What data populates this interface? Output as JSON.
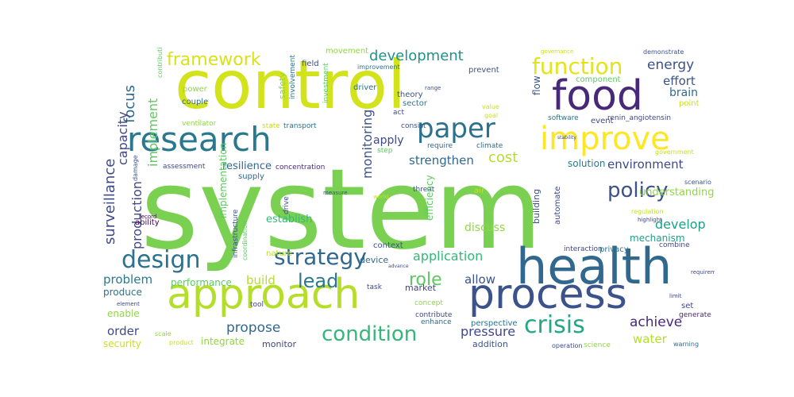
{
  "words": [
    {
      "text": "system",
      "color": "#7ad151",
      "vertical": false
    },
    {
      "text": "control",
      "color": "#d2e21b",
      "vertical": false
    },
    {
      "text": "health",
      "color": "#31688e",
      "vertical": false
    },
    {
      "text": "approach",
      "color": "#b5de2b",
      "vertical": false
    },
    {
      "text": "process",
      "color": "#3b528b",
      "vertical": false
    },
    {
      "text": "research",
      "color": "#2a788e",
      "vertical": false
    },
    {
      "text": "food",
      "color": "#482878",
      "vertical": false
    },
    {
      "text": "improve",
      "color": "#fde725",
      "vertical": false
    },
    {
      "text": "paper",
      "color": "#2c728e",
      "vertical": false
    },
    {
      "text": "function",
      "color": "#e2e418",
      "vertical": false
    },
    {
      "text": "strategy",
      "color": "#31688e",
      "vertical": false
    },
    {
      "text": "design",
      "color": "#2c728e",
      "vertical": false
    },
    {
      "text": "condition",
      "color": "#35b779",
      "vertical": false
    },
    {
      "text": "crisis",
      "color": "#22a884",
      "vertical": false
    },
    {
      "text": "policy",
      "color": "#3b528b",
      "vertical": false
    },
    {
      "text": "framework",
      "color": "#d8e219",
      "vertical": false
    },
    {
      "text": "development",
      "color": "#21918c",
      "vertical": false
    },
    {
      "text": "lead",
      "color": "#2a788e",
      "vertical": false
    },
    {
      "text": "role",
      "color": "#5ec962",
      "vertical": false
    },
    {
      "text": "surveillance",
      "color": "#3e4989",
      "vertical": true
    },
    {
      "text": "focus",
      "color": "#31688e",
      "vertical": true
    },
    {
      "text": "capacity",
      "color": "#414487",
      "vertical": true
    },
    {
      "text": "implement",
      "color": "#5ec962",
      "vertical": true
    },
    {
      "text": "production",
      "color": "#3e4989",
      "vertical": true
    },
    {
      "text": "monitoring",
      "color": "#3b528b",
      "vertical": true
    },
    {
      "text": "strengthen",
      "color": "#31688e",
      "vertical": false
    },
    {
      "text": "apply",
      "color": "#3e4989",
      "vertical": false
    },
    {
      "text": "cost",
      "color": "#b5de2b",
      "vertical": false
    },
    {
      "text": "energy",
      "color": "#3b528b",
      "vertical": false
    },
    {
      "text": "environment",
      "color": "#3e4989",
      "vertical": false
    },
    {
      "text": "develop",
      "color": "#1f9e89",
      "vertical": false
    },
    {
      "text": "application",
      "color": "#35b779",
      "vertical": false
    },
    {
      "text": "problem",
      "color": "#2a788e",
      "vertical": false
    },
    {
      "text": "build",
      "color": "#b5de2b",
      "vertical": false
    },
    {
      "text": "allow",
      "color": "#3b528b",
      "vertical": false
    },
    {
      "text": "propose",
      "color": "#31688e",
      "vertical": false
    },
    {
      "text": "pressure",
      "color": "#3e4989",
      "vertical": false
    },
    {
      "text": "achieve",
      "color": "#482878",
      "vertical": false
    },
    {
      "text": "order",
      "color": "#3e4989",
      "vertical": false
    },
    {
      "text": "water",
      "color": "#b5de2b",
      "vertical": false
    },
    {
      "text": "effort",
      "color": "#3b528b",
      "vertical": false
    },
    {
      "text": "brain",
      "color": "#31688e",
      "vertical": false
    },
    {
      "text": "discuss",
      "color": "#90d743",
      "vertical": false
    },
    {
      "text": "establish",
      "color": "#35b779",
      "vertical": false
    },
    {
      "text": "solution",
      "color": "#2a788e",
      "vertical": false
    },
    {
      "text": "understanding",
      "color": "#90d743",
      "vertical": false
    },
    {
      "text": "mechanism",
      "color": "#1f9e89",
      "vertical": false
    },
    {
      "text": "resilience",
      "color": "#31688e",
      "vertical": false
    },
    {
      "text": "performance",
      "color": "#5ec962",
      "vertical": false
    },
    {
      "text": "produce",
      "color": "#2c728e",
      "vertical": false
    },
    {
      "text": "enable",
      "color": "#90d743",
      "vertical": false
    },
    {
      "text": "security",
      "color": "#c8e020",
      "vertical": false
    },
    {
      "text": "integrate",
      "color": "#90d743",
      "vertical": false
    },
    {
      "text": "monitor",
      "color": "#414487",
      "vertical": false
    },
    {
      "text": "addition",
      "color": "#3b528b",
      "vertical": false
    },
    {
      "text": "device",
      "color": "#31688e",
      "vertical": false
    },
    {
      "text": "market",
      "color": "#414487",
      "vertical": false
    },
    {
      "text": "ability",
      "color": "#440154",
      "vertical": false
    },
    {
      "text": "supply",
      "color": "#31688e",
      "vertical": false
    },
    {
      "text": "concentration",
      "color": "#482878",
      "vertical": false
    },
    {
      "text": "implementation",
      "color": "#5ec962",
      "vertical": true
    },
    {
      "text": "infrastructure",
      "color": "#3b528b",
      "vertical": true
    },
    {
      "text": "coordination",
      "color": "#5ec962",
      "vertical": true
    },
    {
      "text": "field",
      "color": "#3e4989",
      "vertical": false
    },
    {
      "text": "movement",
      "color": "#90d743",
      "vertical": false
    },
    {
      "text": "theory",
      "color": "#3b528b",
      "vertical": false
    },
    {
      "text": "sector",
      "color": "#2a788e",
      "vertical": false
    },
    {
      "text": "act",
      "color": "#3e4989",
      "vertical": false
    },
    {
      "text": "driver",
      "color": "#2c728e",
      "vertical": false
    },
    {
      "text": "prevent",
      "color": "#3b528b",
      "vertical": false
    },
    {
      "text": "component",
      "color": "#5ec962",
      "vertical": false
    },
    {
      "text": "event",
      "color": "#3e4989",
      "vertical": false
    },
    {
      "text": "power",
      "color": "#90d743",
      "vertical": false
    },
    {
      "text": "couple",
      "color": "#31688e",
      "vertical": false
    },
    {
      "text": "ventilator",
      "color": "#90d743",
      "vertical": false
    },
    {
      "text": "state",
      "color": "#c8e020",
      "vertical": false
    },
    {
      "text": "transport",
      "color": "#2c728e",
      "vertical": false
    },
    {
      "text": "step",
      "color": "#5ec962",
      "vertical": false
    },
    {
      "text": "consist",
      "color": "#3b528b",
      "vertical": false
    },
    {
      "text": "require",
      "color": "#31688e",
      "vertical": false
    },
    {
      "text": "climate",
      "color": "#31688e",
      "vertical": false
    },
    {
      "text": "flow",
      "color": "#3b528b",
      "vertical": true
    },
    {
      "text": "point",
      "color": "#c8e020",
      "vertical": false
    },
    {
      "text": "software",
      "color": "#2c728e",
      "vertical": false
    },
    {
      "text": "renin_angiotensin",
      "color": "#3e4989",
      "vertical": false
    },
    {
      "text": "safety",
      "color": "#90d743",
      "vertical": true
    },
    {
      "text": "assessment",
      "color": "#3e4989",
      "vertical": false
    },
    {
      "text": "threat",
      "color": "#3b528b",
      "vertical": false
    },
    {
      "text": "air",
      "color": "#c8e020",
      "vertical": false
    },
    {
      "text": "efficiency",
      "color": "#5ec962",
      "vertical": true
    },
    {
      "text": "building",
      "color": "#3b528b",
      "vertical": true
    },
    {
      "text": "automate",
      "color": "#3e4989",
      "vertical": true
    },
    {
      "text": "interaction",
      "color": "#414487",
      "vertical": false
    },
    {
      "text": "privacy",
      "color": "#2c728e",
      "vertical": false
    },
    {
      "text": "drive",
      "color": "#3e4989",
      "vertical": true
    },
    {
      "text": "nature",
      "color": "#b5de2b",
      "vertical": false
    },
    {
      "text": "context",
      "color": "#3b528b",
      "vertical": false
    },
    {
      "text": "tool",
      "color": "#3e4989",
      "vertical": false
    },
    {
      "text": "task",
      "color": "#3e4989",
      "vertical": false
    },
    {
      "text": "concept",
      "color": "#90d743",
      "vertical": false
    },
    {
      "text": "contribute",
      "color": "#3e4989",
      "vertical": false
    },
    {
      "text": "enhance",
      "color": "#31688e",
      "vertical": false
    },
    {
      "text": "perspective",
      "color": "#2c728e",
      "vertical": false
    },
    {
      "text": "operation",
      "color": "#3e4989",
      "vertical": false
    },
    {
      "text": "science",
      "color": "#90d743",
      "vertical": false
    },
    {
      "text": "set",
      "color": "#3e4989",
      "vertical": false
    },
    {
      "text": "generate",
      "color": "#482878",
      "vertical": false
    },
    {
      "text": "warning",
      "color": "#31688e",
      "vertical": false
    },
    {
      "text": "combine",
      "color": "#3e4989",
      "vertical": false
    },
    {
      "text": "scenario",
      "color": "#3b528b",
      "vertical": false
    },
    {
      "text": "regulation",
      "color": "#c8e020",
      "vertical": false
    },
    {
      "text": "highlight",
      "color": "#3e4989",
      "vertical": false
    },
    {
      "text": "limit",
      "color": "#3e4989",
      "vertical": false
    },
    {
      "text": "requirement",
      "color": "#3e4989",
      "vertical": false
    },
    {
      "text": "scale",
      "color": "#90d743",
      "vertical": false
    },
    {
      "text": "product",
      "color": "#c8e020",
      "vertical": false
    },
    {
      "text": "damage",
      "color": "#3b528b",
      "vertical": true
    },
    {
      "text": "record",
      "color": "#440154",
      "vertical": false
    },
    {
      "text": "improvement",
      "color": "#2c728e",
      "vertical": false
    },
    {
      "text": "investment",
      "color": "#5ec962",
      "vertical": true
    },
    {
      "text": "involvement",
      "color": "#2c728e",
      "vertical": true
    },
    {
      "text": "value",
      "color": "#c8e020",
      "vertical": false
    },
    {
      "text": "goal",
      "color": "#c8e020",
      "vertical": false
    },
    {
      "text": "range",
      "color": "#3b528b",
      "vertical": false
    },
    {
      "text": "demonstrate",
      "color": "#3b528b",
      "vertical": false
    },
    {
      "text": "governance",
      "color": "#c8e020",
      "vertical": false
    },
    {
      "text": "contribution",
      "color": "#5ec962",
      "vertical": true
    },
    {
      "text": "advance",
      "color": "#3e4989",
      "vertical": false
    },
    {
      "text": "element",
      "color": "#3e4989",
      "vertical": false
    },
    {
      "text": "stability",
      "color": "#3e4989",
      "vertical": false
    },
    {
      "text": "government",
      "color": "#c8e020",
      "vertical": false
    },
    {
      "text": "measure",
      "color": "#3b528b",
      "vertical": false
    },
    {
      "text": "world",
      "color": "#c8e020",
      "vertical": false
    }
  ]
}
